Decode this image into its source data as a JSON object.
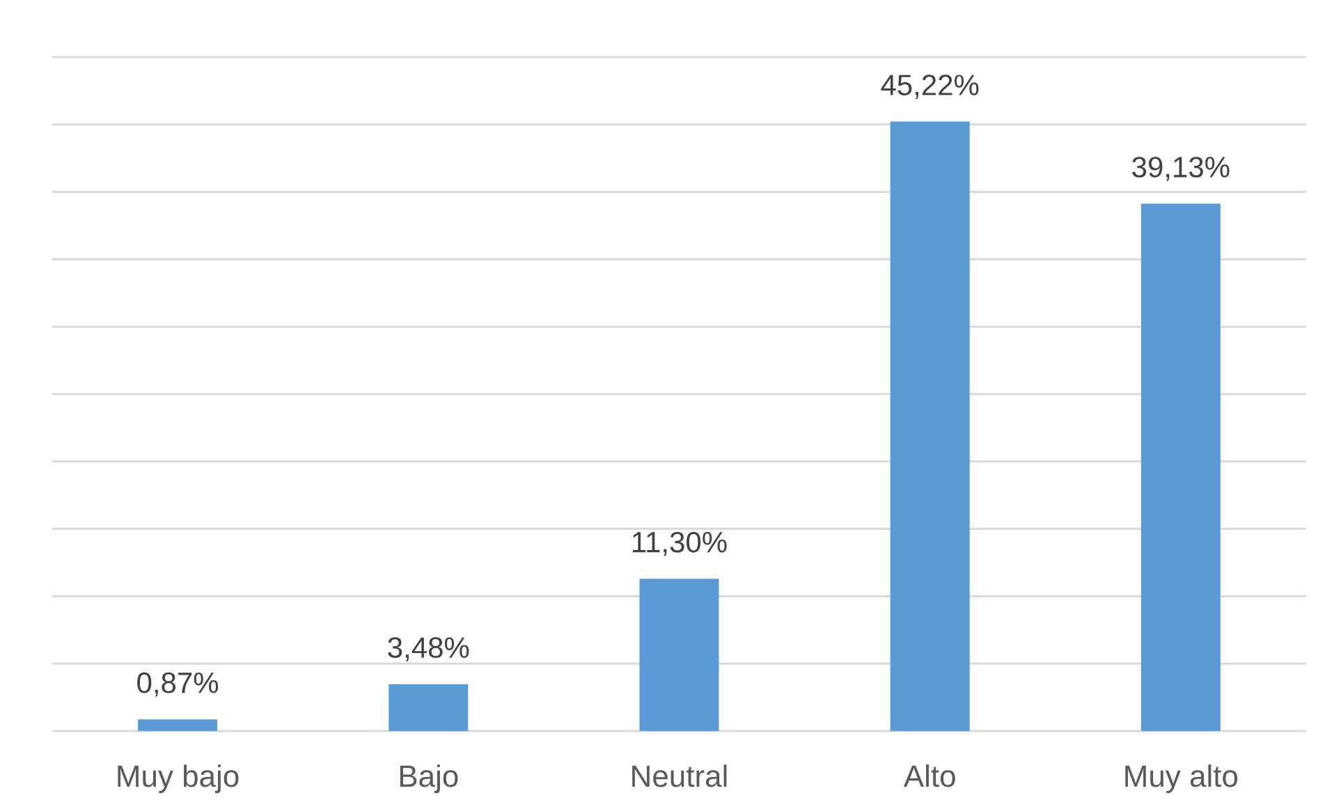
{
  "chart_data": {
    "type": "bar",
    "categories": [
      "Muy bajo",
      "Bajo",
      "Neutral",
      "Alto",
      "Muy alto"
    ],
    "values": [
      0.87,
      3.48,
      11.3,
      45.22,
      39.13
    ],
    "value_labels": [
      "0,87%",
      "3,48%",
      "11,30%",
      "45,22%",
      "39,13%"
    ],
    "color": "#5b9bd5",
    "ylim": [
      0,
      50
    ],
    "yticks": [
      {
        "value": 0,
        "label": null
      },
      {
        "value": 5,
        "label": null
      },
      {
        "value": 10,
        "label": null
      },
      {
        "value": 15,
        "label": null
      },
      {
        "value": 20,
        "label": null
      },
      {
        "value": 25,
        "label": null
      },
      {
        "value": 30,
        "label": null
      },
      {
        "value": 35,
        "label": null
      },
      {
        "value": 40,
        "label": null
      },
      {
        "value": 45,
        "label": null
      },
      {
        "value": 50,
        "label": null
      }
    ],
    "grid": "y",
    "tick_labels": "x"
  }
}
